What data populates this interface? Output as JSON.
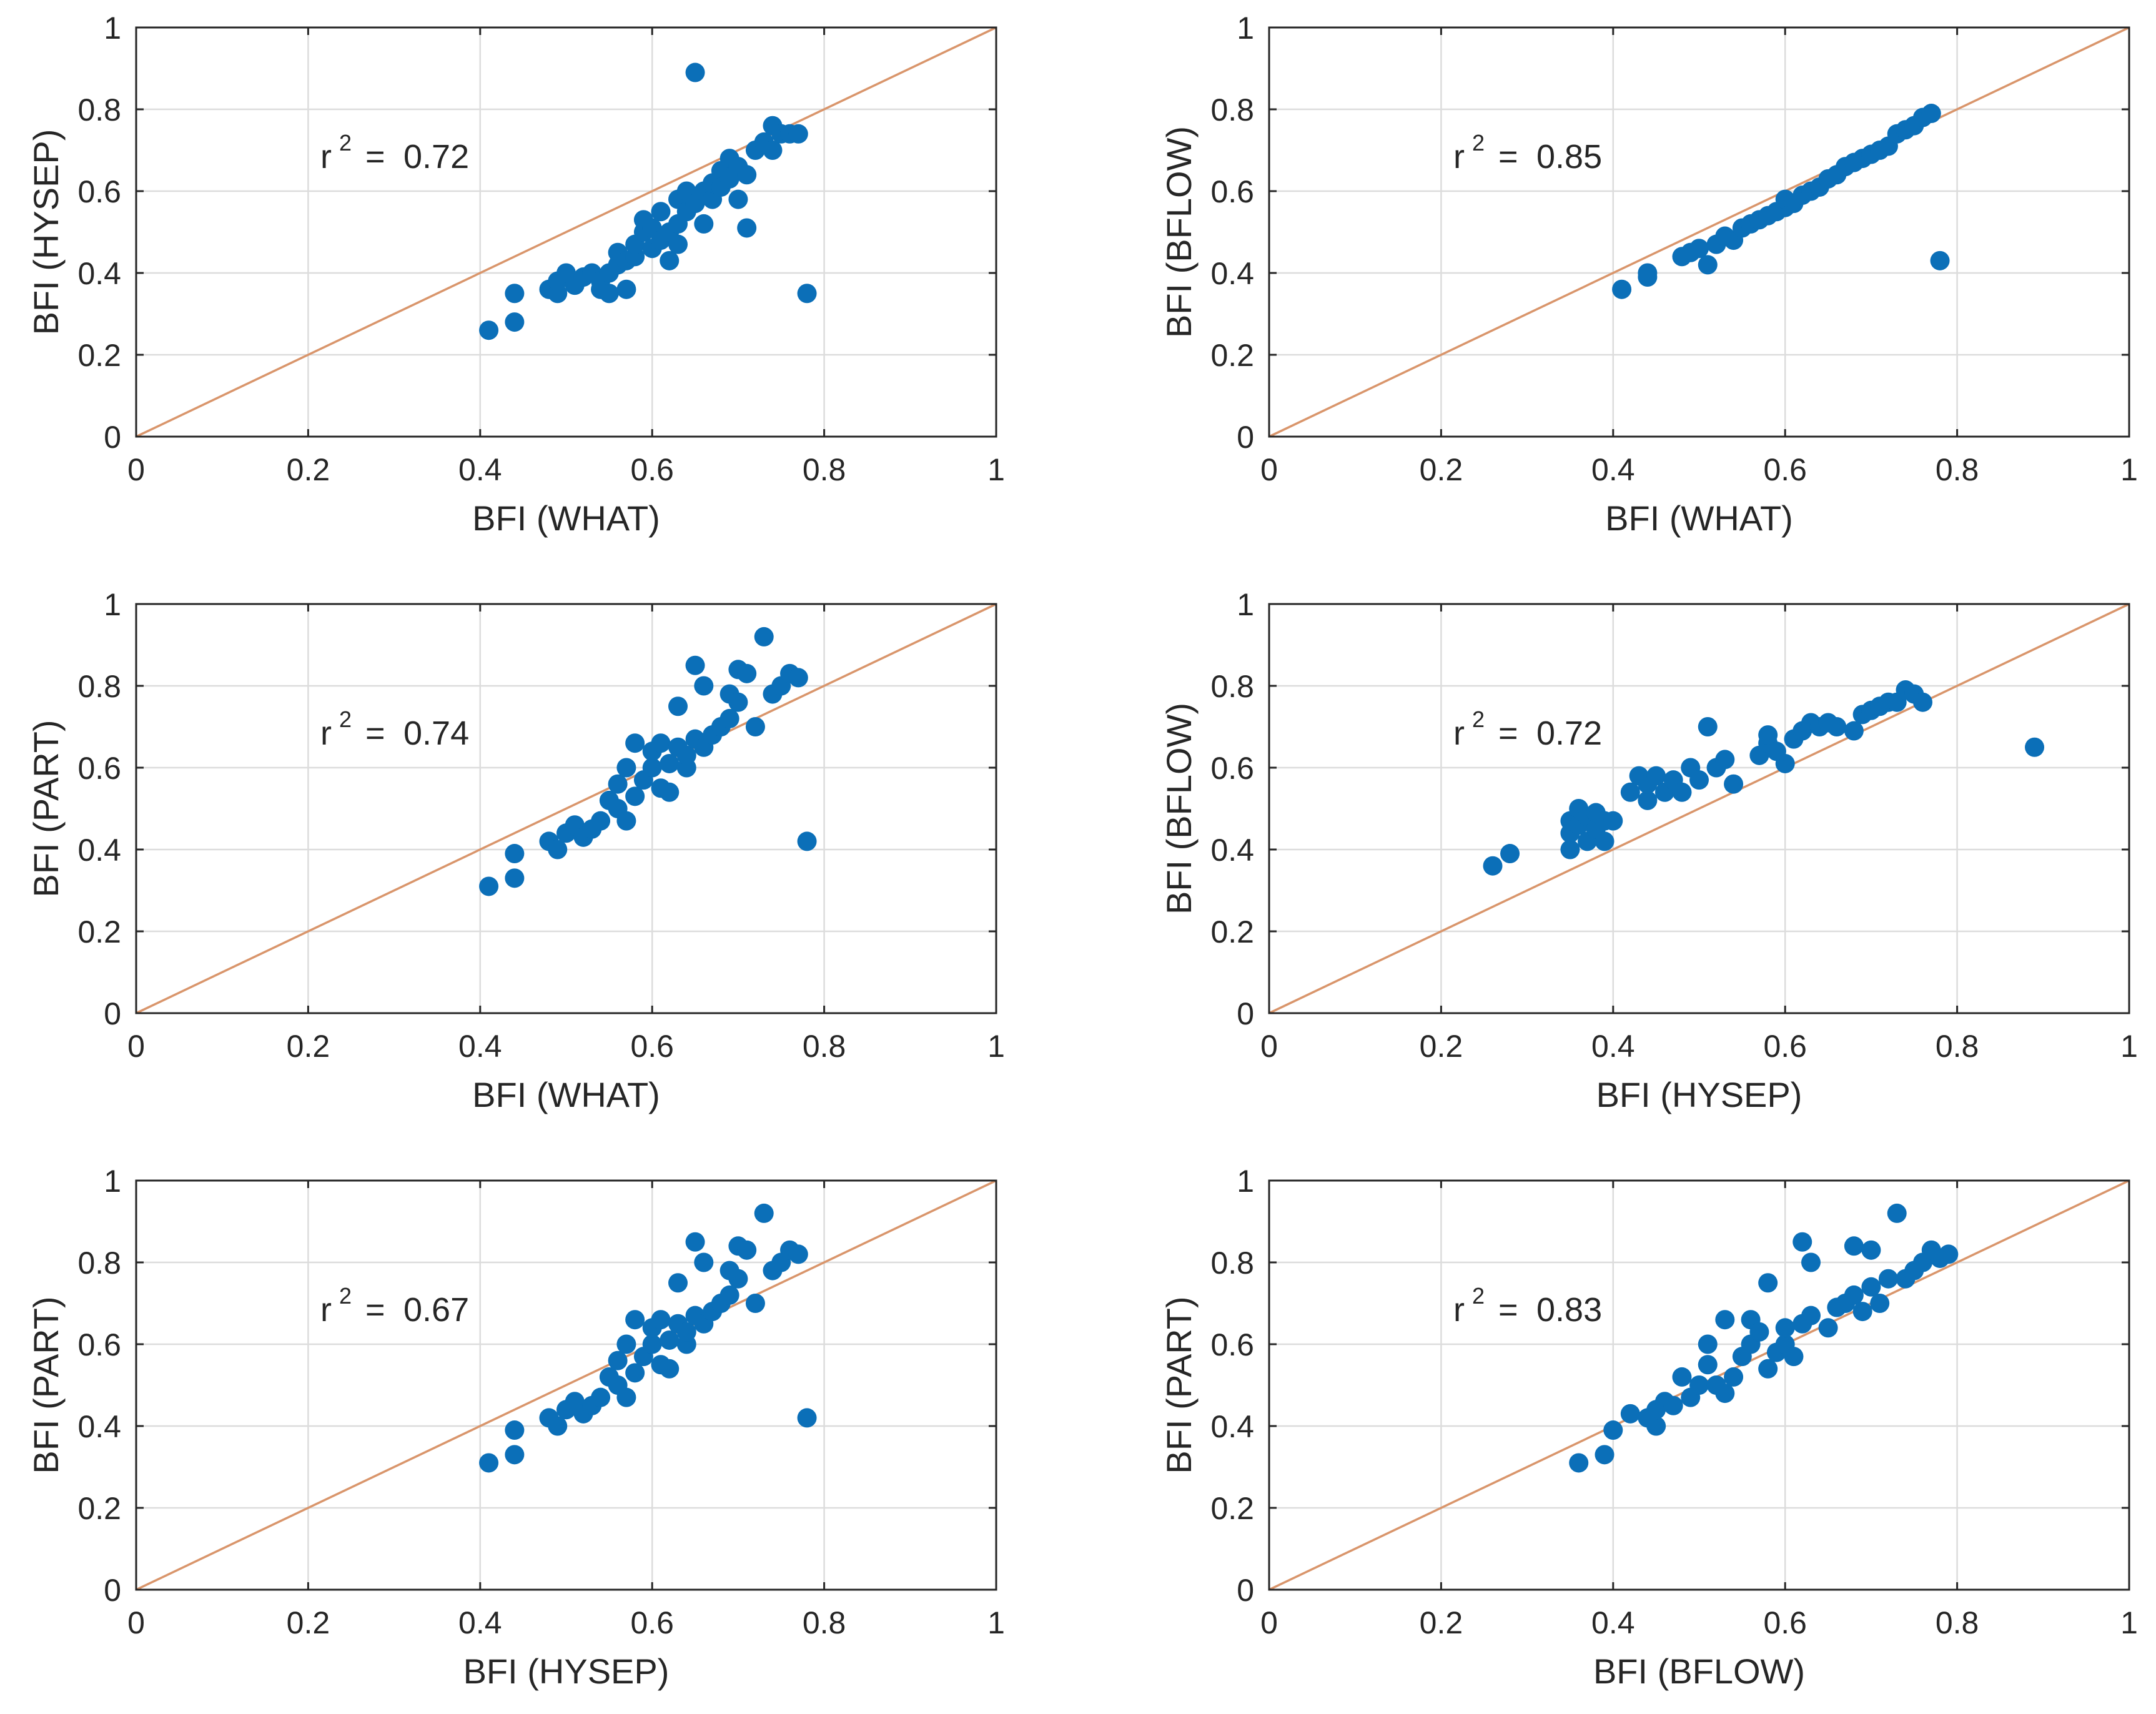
{
  "colors": {
    "points": "#0b6fb8",
    "reference_line": "#d9956b",
    "grid": "#dcdcdc",
    "axes": "#262626"
  },
  "chart_data": [
    {
      "type": "scatter",
      "title": "",
      "xlabel": "BFI (WHAT)",
      "ylabel": "BFI (HYSEP)",
      "xlim": [
        0,
        1
      ],
      "ylim": [
        0,
        1
      ],
      "xticks": [
        "0",
        "0.2",
        "0.4",
        "0.6",
        "0.8",
        "1"
      ],
      "yticks": [
        "0",
        "0.2",
        "0.4",
        "0.6",
        "0.8",
        "1"
      ],
      "grid": true,
      "reference_line": "1:1",
      "annotation": {
        "prefix": "r",
        "sup": "2",
        "eq": "=",
        "value": "0.72"
      },
      "points": [
        [
          0.41,
          0.26
        ],
        [
          0.44,
          0.28
        ],
        [
          0.44,
          0.35
        ],
        [
          0.48,
          0.36
        ],
        [
          0.49,
          0.35
        ],
        [
          0.49,
          0.38
        ],
        [
          0.5,
          0.4
        ],
        [
          0.51,
          0.37
        ],
        [
          0.52,
          0.39
        ],
        [
          0.53,
          0.4
        ],
        [
          0.54,
          0.36
        ],
        [
          0.54,
          0.38
        ],
        [
          0.55,
          0.35
        ],
        [
          0.55,
          0.4
        ],
        [
          0.56,
          0.42
        ],
        [
          0.56,
          0.45
        ],
        [
          0.57,
          0.36
        ],
        [
          0.57,
          0.43
        ],
        [
          0.58,
          0.44
        ],
        [
          0.58,
          0.47
        ],
        [
          0.59,
          0.5
        ],
        [
          0.59,
          0.53
        ],
        [
          0.6,
          0.46
        ],
        [
          0.6,
          0.51
        ],
        [
          0.61,
          0.48
        ],
        [
          0.61,
          0.55
        ],
        [
          0.62,
          0.43
        ],
        [
          0.62,
          0.5
        ],
        [
          0.63,
          0.47
        ],
        [
          0.63,
          0.52
        ],
        [
          0.63,
          0.58
        ],
        [
          0.64,
          0.6
        ],
        [
          0.64,
          0.55
        ],
        [
          0.65,
          0.57
        ],
        [
          0.65,
          0.89
        ],
        [
          0.66,
          0.52
        ],
        [
          0.66,
          0.6
        ],
        [
          0.67,
          0.58
        ],
        [
          0.67,
          0.62
        ],
        [
          0.68,
          0.65
        ],
        [
          0.68,
          0.61
        ],
        [
          0.69,
          0.68
        ],
        [
          0.69,
          0.63
        ],
        [
          0.7,
          0.66
        ],
        [
          0.7,
          0.58
        ],
        [
          0.71,
          0.64
        ],
        [
          0.71,
          0.51
        ],
        [
          0.72,
          0.7
        ],
        [
          0.73,
          0.72
        ],
        [
          0.74,
          0.76
        ],
        [
          0.74,
          0.7
        ],
        [
          0.75,
          0.74
        ],
        [
          0.76,
          0.74
        ],
        [
          0.77,
          0.74
        ],
        [
          0.78,
          0.35
        ]
      ]
    },
    {
      "type": "scatter",
      "title": "",
      "xlabel": "BFI (WHAT)",
      "ylabel": "BFI (BFLOW)",
      "xlim": [
        0,
        1
      ],
      "ylim": [
        0,
        1
      ],
      "xticks": [
        "0",
        "0.2",
        "0.4",
        "0.6",
        "0.8",
        "1"
      ],
      "yticks": [
        "0",
        "0.2",
        "0.4",
        "0.6",
        "0.8",
        "1"
      ],
      "grid": true,
      "reference_line": "1:1",
      "annotation": {
        "prefix": "r",
        "sup": "2",
        "eq": "=",
        "value": "0.85"
      },
      "points": [
        [
          0.41,
          0.36
        ],
        [
          0.44,
          0.39
        ],
        [
          0.44,
          0.4
        ],
        [
          0.48,
          0.44
        ],
        [
          0.49,
          0.45
        ],
        [
          0.5,
          0.46
        ],
        [
          0.51,
          0.42
        ],
        [
          0.52,
          0.47
        ],
        [
          0.53,
          0.49
        ],
        [
          0.54,
          0.48
        ],
        [
          0.55,
          0.51
        ],
        [
          0.56,
          0.52
        ],
        [
          0.57,
          0.53
        ],
        [
          0.58,
          0.54
        ],
        [
          0.59,
          0.55
        ],
        [
          0.6,
          0.56
        ],
        [
          0.6,
          0.58
        ],
        [
          0.61,
          0.57
        ],
        [
          0.62,
          0.59
        ],
        [
          0.63,
          0.6
        ],
        [
          0.64,
          0.61
        ],
        [
          0.65,
          0.63
        ],
        [
          0.66,
          0.64
        ],
        [
          0.67,
          0.66
        ],
        [
          0.68,
          0.67
        ],
        [
          0.69,
          0.68
        ],
        [
          0.7,
          0.69
        ],
        [
          0.71,
          0.7
        ],
        [
          0.72,
          0.71
        ],
        [
          0.73,
          0.74
        ],
        [
          0.74,
          0.75
        ],
        [
          0.75,
          0.76
        ],
        [
          0.76,
          0.78
        ],
        [
          0.77,
          0.79
        ],
        [
          0.78,
          0.43
        ]
      ]
    },
    {
      "type": "scatter",
      "title": "",
      "xlabel": "BFI (WHAT)",
      "ylabel": "BFI (PART)",
      "xlim": [
        0,
        1
      ],
      "ylim": [
        0,
        1
      ],
      "xticks": [
        "0",
        "0.2",
        "0.4",
        "0.6",
        "0.8",
        "1"
      ],
      "yticks": [
        "0",
        "0.2",
        "0.4",
        "0.6",
        "0.8",
        "1"
      ],
      "grid": true,
      "reference_line": "1:1",
      "annotation": {
        "prefix": "r",
        "sup": "2",
        "eq": "=",
        "value": "0.74"
      },
      "points": [
        [
          0.41,
          0.31
        ],
        [
          0.44,
          0.33
        ],
        [
          0.44,
          0.39
        ],
        [
          0.48,
          0.42
        ],
        [
          0.49,
          0.4
        ],
        [
          0.5,
          0.44
        ],
        [
          0.51,
          0.46
        ],
        [
          0.52,
          0.43
        ],
        [
          0.53,
          0.45
        ],
        [
          0.54,
          0.47
        ],
        [
          0.55,
          0.52
        ],
        [
          0.56,
          0.5
        ],
        [
          0.56,
          0.56
        ],
        [
          0.57,
          0.47
        ],
        [
          0.57,
          0.6
        ],
        [
          0.58,
          0.53
        ],
        [
          0.58,
          0.66
        ],
        [
          0.59,
          0.57
        ],
        [
          0.6,
          0.6
        ],
        [
          0.6,
          0.64
        ],
        [
          0.61,
          0.55
        ],
        [
          0.61,
          0.66
        ],
        [
          0.62,
          0.54
        ],
        [
          0.62,
          0.61
        ],
        [
          0.63,
          0.65
        ],
        [
          0.63,
          0.75
        ],
        [
          0.64,
          0.6
        ],
        [
          0.64,
          0.63
        ],
        [
          0.65,
          0.67
        ],
        [
          0.65,
          0.85
        ],
        [
          0.66,
          0.65
        ],
        [
          0.66,
          0.8
        ],
        [
          0.67,
          0.68
        ],
        [
          0.68,
          0.7
        ],
        [
          0.69,
          0.72
        ],
        [
          0.69,
          0.78
        ],
        [
          0.7,
          0.76
        ],
        [
          0.7,
          0.84
        ],
        [
          0.71,
          0.83
        ],
        [
          0.72,
          0.7
        ],
        [
          0.73,
          0.92
        ],
        [
          0.74,
          0.78
        ],
        [
          0.75,
          0.8
        ],
        [
          0.76,
          0.83
        ],
        [
          0.77,
          0.82
        ],
        [
          0.78,
          0.42
        ]
      ]
    },
    {
      "type": "scatter",
      "title": "",
      "xlabel": "BFI (HYSEP)",
      "ylabel": "BFI (BFLOW)",
      "xlim": [
        0,
        1
      ],
      "ylim": [
        0,
        1
      ],
      "xticks": [
        "0",
        "0.2",
        "0.4",
        "0.6",
        "0.8",
        "1"
      ],
      "yticks": [
        "0",
        "0.2",
        "0.4",
        "0.6",
        "0.8",
        "1"
      ],
      "grid": true,
      "reference_line": "1:1",
      "annotation": {
        "prefix": "r",
        "sup": "2",
        "eq": "=",
        "value": "0.72"
      },
      "points": [
        [
          0.26,
          0.36
        ],
        [
          0.28,
          0.39
        ],
        [
          0.35,
          0.4
        ],
        [
          0.35,
          0.44
        ],
        [
          0.35,
          0.47
        ],
        [
          0.36,
          0.46
        ],
        [
          0.36,
          0.5
        ],
        [
          0.37,
          0.42
        ],
        [
          0.37,
          0.48
        ],
        [
          0.38,
          0.45
        ],
        [
          0.38,
          0.49
        ],
        [
          0.39,
          0.42
        ],
        [
          0.39,
          0.47
        ],
        [
          0.4,
          0.47
        ],
        [
          0.42,
          0.54
        ],
        [
          0.43,
          0.58
        ],
        [
          0.44,
          0.52
        ],
        [
          0.44,
          0.56
        ],
        [
          0.45,
          0.58
        ],
        [
          0.46,
          0.54
        ],
        [
          0.47,
          0.57
        ],
        [
          0.48,
          0.54
        ],
        [
          0.49,
          0.6
        ],
        [
          0.5,
          0.57
        ],
        [
          0.51,
          0.7
        ],
        [
          0.52,
          0.6
        ],
        [
          0.53,
          0.62
        ],
        [
          0.54,
          0.56
        ],
        [
          0.57,
          0.63
        ],
        [
          0.58,
          0.66
        ],
        [
          0.58,
          0.68
        ],
        [
          0.59,
          0.64
        ],
        [
          0.6,
          0.61
        ],
        [
          0.61,
          0.67
        ],
        [
          0.62,
          0.69
        ],
        [
          0.63,
          0.71
        ],
        [
          0.64,
          0.7
        ],
        [
          0.65,
          0.71
        ],
        [
          0.66,
          0.7
        ],
        [
          0.68,
          0.69
        ],
        [
          0.69,
          0.73
        ],
        [
          0.7,
          0.74
        ],
        [
          0.71,
          0.75
        ],
        [
          0.72,
          0.76
        ],
        [
          0.73,
          0.76
        ],
        [
          0.74,
          0.79
        ],
        [
          0.75,
          0.78
        ],
        [
          0.76,
          0.76
        ],
        [
          0.89,
          0.65
        ]
      ]
    },
    {
      "type": "scatter",
      "title": "",
      "xlabel": "BFI (HYSEP)",
      "ylabel": "BFI (PART)",
      "xlim": [
        0,
        1
      ],
      "ylim": [
        0,
        1
      ],
      "xticks": [
        "0",
        "0.2",
        "0.4",
        "0.6",
        "0.8",
        "1"
      ],
      "yticks": [
        "0",
        "0.2",
        "0.4",
        "0.6",
        "0.8",
        "1"
      ],
      "grid": true,
      "reference_line": "1:1",
      "annotation": {
        "prefix": "r",
        "sup": "2",
        "eq": "=",
        "value": "0.67"
      },
      "points": [
        [
          0.41,
          0.31
        ],
        [
          0.44,
          0.33
        ],
        [
          0.44,
          0.39
        ],
        [
          0.48,
          0.42
        ],
        [
          0.49,
          0.4
        ],
        [
          0.5,
          0.44
        ],
        [
          0.51,
          0.46
        ],
        [
          0.52,
          0.43
        ],
        [
          0.53,
          0.45
        ],
        [
          0.54,
          0.47
        ],
        [
          0.55,
          0.52
        ],
        [
          0.56,
          0.5
        ],
        [
          0.56,
          0.56
        ],
        [
          0.57,
          0.47
        ],
        [
          0.57,
          0.6
        ],
        [
          0.58,
          0.53
        ],
        [
          0.58,
          0.66
        ],
        [
          0.59,
          0.57
        ],
        [
          0.6,
          0.6
        ],
        [
          0.6,
          0.64
        ],
        [
          0.61,
          0.55
        ],
        [
          0.61,
          0.66
        ],
        [
          0.62,
          0.54
        ],
        [
          0.62,
          0.61
        ],
        [
          0.63,
          0.65
        ],
        [
          0.63,
          0.75
        ],
        [
          0.64,
          0.6
        ],
        [
          0.64,
          0.63
        ],
        [
          0.65,
          0.67
        ],
        [
          0.65,
          0.85
        ],
        [
          0.66,
          0.65
        ],
        [
          0.66,
          0.8
        ],
        [
          0.67,
          0.68
        ],
        [
          0.68,
          0.7
        ],
        [
          0.69,
          0.72
        ],
        [
          0.69,
          0.78
        ],
        [
          0.7,
          0.76
        ],
        [
          0.7,
          0.84
        ],
        [
          0.71,
          0.83
        ],
        [
          0.72,
          0.7
        ],
        [
          0.73,
          0.92
        ],
        [
          0.74,
          0.78
        ],
        [
          0.75,
          0.8
        ],
        [
          0.76,
          0.83
        ],
        [
          0.77,
          0.82
        ],
        [
          0.78,
          0.42
        ]
      ]
    },
    {
      "type": "scatter",
      "title": "",
      "xlabel": "BFI (BFLOW)",
      "ylabel": "BFI (PART)",
      "xlim": [
        0,
        1
      ],
      "ylim": [
        0,
        1
      ],
      "xticks": [
        "0",
        "0.2",
        "0.4",
        "0.6",
        "0.8",
        "1"
      ],
      "yticks": [
        "0",
        "0.2",
        "0.4",
        "0.6",
        "0.8",
        "1"
      ],
      "grid": true,
      "reference_line": "1:1",
      "annotation": {
        "prefix": "r",
        "sup": "2",
        "eq": "=",
        "value": "0.83"
      },
      "points": [
        [
          0.36,
          0.31
        ],
        [
          0.39,
          0.33
        ],
        [
          0.4,
          0.39
        ],
        [
          0.42,
          0.43
        ],
        [
          0.44,
          0.42
        ],
        [
          0.45,
          0.4
        ],
        [
          0.45,
          0.44
        ],
        [
          0.46,
          0.46
        ],
        [
          0.47,
          0.45
        ],
        [
          0.48,
          0.52
        ],
        [
          0.49,
          0.47
        ],
        [
          0.5,
          0.5
        ],
        [
          0.51,
          0.55
        ],
        [
          0.51,
          0.6
        ],
        [
          0.52,
          0.5
        ],
        [
          0.53,
          0.48
        ],
        [
          0.53,
          0.66
        ],
        [
          0.54,
          0.52
        ],
        [
          0.55,
          0.57
        ],
        [
          0.56,
          0.6
        ],
        [
          0.56,
          0.66
        ],
        [
          0.57,
          0.63
        ],
        [
          0.58,
          0.54
        ],
        [
          0.58,
          0.75
        ],
        [
          0.59,
          0.58
        ],
        [
          0.6,
          0.6
        ],
        [
          0.6,
          0.64
        ],
        [
          0.61,
          0.57
        ],
        [
          0.62,
          0.65
        ],
        [
          0.62,
          0.85
        ],
        [
          0.63,
          0.67
        ],
        [
          0.63,
          0.8
        ],
        [
          0.65,
          0.64
        ],
        [
          0.66,
          0.69
        ],
        [
          0.67,
          0.7
        ],
        [
          0.68,
          0.72
        ],
        [
          0.68,
          0.84
        ],
        [
          0.69,
          0.68
        ],
        [
          0.7,
          0.74
        ],
        [
          0.7,
          0.83
        ],
        [
          0.71,
          0.7
        ],
        [
          0.72,
          0.76
        ],
        [
          0.73,
          0.92
        ],
        [
          0.74,
          0.76
        ],
        [
          0.75,
          0.78
        ],
        [
          0.76,
          0.8
        ],
        [
          0.77,
          0.83
        ],
        [
          0.78,
          0.81
        ],
        [
          0.79,
          0.82
        ]
      ]
    }
  ]
}
